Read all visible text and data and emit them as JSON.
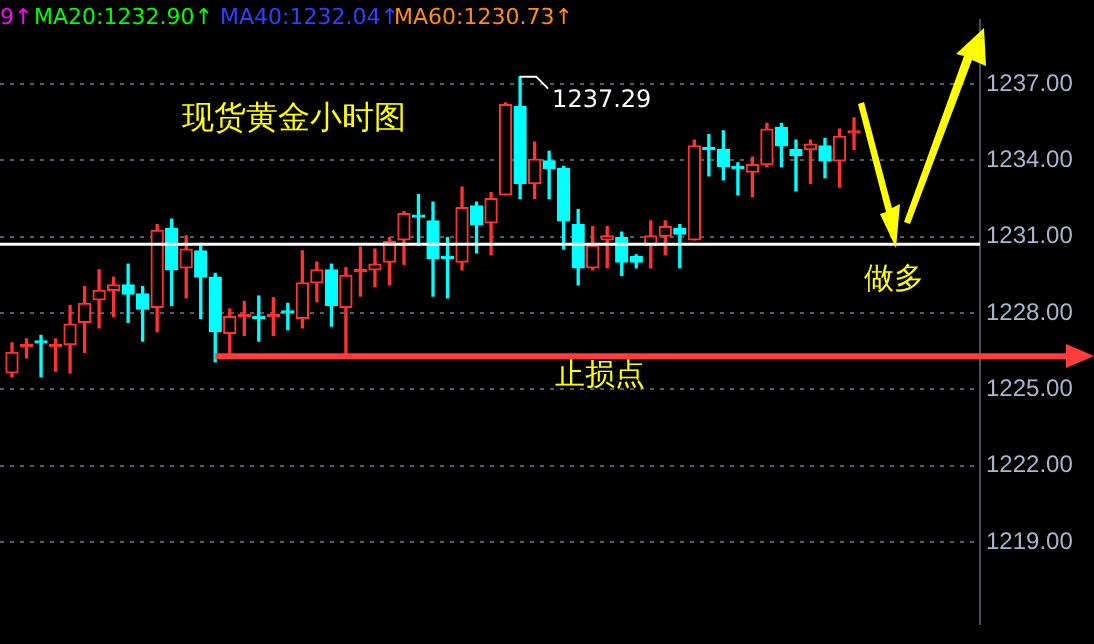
{
  "chart_data": {
    "type": "candlestick",
    "title": "现货黄金小时图",
    "categories": [
      null,
      null,
      null,
      null,
      null,
      null,
      null,
      null,
      null,
      null,
      null,
      null,
      null,
      null,
      null,
      null,
      null,
      null,
      null,
      null,
      null,
      null,
      null,
      null,
      null,
      null,
      null,
      null,
      null,
      null,
      null,
      null,
      null,
      null,
      null,
      null,
      null,
      null,
      null,
      null,
      null,
      null,
      null,
      null,
      null,
      null,
      null,
      null,
      null,
      null,
      null,
      null,
      null,
      null,
      null,
      null,
      null,
      null,
      null
    ],
    "ohlc": [
      [
        1225.65,
        1226.83,
        1225.5,
        1226.46
      ],
      [
        1226.68,
        1226.98,
        1226.24,
        1226.68
      ],
      [
        1226.83,
        1227.12,
        1225.5,
        1226.83
      ],
      [
        1226.68,
        1226.98,
        1225.72,
        1226.68
      ],
      [
        1226.76,
        1228.3,
        1225.65,
        1227.57
      ],
      [
        1227.64,
        1229.04,
        1226.46,
        1228.38
      ],
      [
        1228.52,
        1229.7,
        1227.42,
        1228.89
      ],
      [
        1228.89,
        1229.41,
        1227.86,
        1229.11
      ],
      [
        1229.11,
        1229.92,
        1227.64,
        1228.75
      ],
      [
        1228.75,
        1229.04,
        1226.9,
        1228.16
      ],
      [
        1228.23,
        1231.47,
        1227.27,
        1231.25
      ],
      [
        1231.33,
        1231.69,
        1228.3,
        1229.7
      ],
      [
        1229.78,
        1231.03,
        1228.6,
        1230.51
      ],
      [
        1230.44,
        1230.74,
        1227.79,
        1229.41
      ],
      [
        1229.41,
        1229.56,
        1226.09,
        1227.27
      ],
      [
        1227.2,
        1228.16,
        1226.39,
        1227.86
      ],
      [
        1227.86,
        1228.45,
        1227.12,
        1227.86
      ],
      [
        1227.79,
        1228.67,
        1226.9,
        1227.79
      ],
      [
        1227.86,
        1228.6,
        1227.12,
        1227.86
      ],
      [
        1228.01,
        1228.38,
        1227.35,
        1228.01
      ],
      [
        1227.79,
        1230.44,
        1227.42,
        1229.19
      ],
      [
        1229.19,
        1230.0,
        1228.45,
        1229.7
      ],
      [
        1229.7,
        1229.92,
        1227.49,
        1228.3
      ],
      [
        1228.23,
        1229.78,
        1226.31,
        1229.48
      ],
      [
        1229.63,
        1230.59,
        1228.67,
        1229.63
      ],
      [
        1229.7,
        1230.51,
        1229.04,
        1229.92
      ],
      [
        1230.0,
        1230.96,
        1229.11,
        1230.81
      ],
      [
        1230.88,
        1231.99,
        1229.92,
        1231.91
      ],
      [
        1231.77,
        1232.65,
        1230.66,
        1231.77
      ],
      [
        1231.62,
        1232.36,
        1228.67,
        1230.15
      ],
      [
        1230.15,
        1230.96,
        1228.6,
        1230.15
      ],
      [
        1230.0,
        1232.95,
        1229.7,
        1232.14
      ],
      [
        1232.21,
        1232.36,
        1230.37,
        1231.47
      ],
      [
        1231.55,
        1232.73,
        1230.29,
        1232.5
      ],
      [
        1232.65,
        1236.26,
        1232.65,
        1236.19
      ],
      [
        1236.12,
        1237.29,
        1232.5,
        1233.09
      ],
      [
        1233.09,
        1234.72,
        1232.5,
        1234.05
      ],
      [
        1233.98,
        1234.35,
        1232.5,
        1233.68
      ],
      [
        1233.68,
        1233.76,
        1230.51,
        1231.62
      ],
      [
        1231.47,
        1232.06,
        1229.11,
        1229.78
      ],
      [
        1229.78,
        1231.4,
        1229.7,
        1230.66
      ],
      [
        1230.88,
        1231.4,
        1229.78,
        1231.03
      ],
      [
        1230.96,
        1231.18,
        1229.48,
        1230.0
      ],
      [
        1230.22,
        1230.29,
        1229.78,
        1230.0
      ],
      [
        1230.66,
        1231.62,
        1229.78,
        1231.03
      ],
      [
        1231.03,
        1231.62,
        1230.29,
        1231.4
      ],
      [
        1231.33,
        1231.47,
        1229.78,
        1231.1
      ],
      [
        1230.88,
        1234.79,
        1230.88,
        1234.57
      ],
      [
        1234.42,
        1235.01,
        1233.39,
        1234.42
      ],
      [
        1234.42,
        1235.16,
        1233.24,
        1233.76
      ],
      [
        1233.68,
        1233.9,
        1232.65,
        1233.68
      ],
      [
        1233.54,
        1234.13,
        1232.58,
        1233.83
      ],
      [
        1233.83,
        1235.45,
        1233.76,
        1235.23
      ],
      [
        1235.3,
        1235.45,
        1233.76,
        1234.57
      ],
      [
        1234.42,
        1234.79,
        1232.8,
        1234.2
      ],
      [
        1234.42,
        1234.79,
        1233.09,
        1234.64
      ],
      [
        1234.57,
        1234.86,
        1233.32,
        1233.98
      ],
      [
        1233.98,
        1235.23,
        1232.95,
        1234.94
      ],
      [
        1235.08,
        1235.67,
        1234.42,
        1235.08
      ]
    ],
    "colors": [
      "#ff3232",
      "#ff3232",
      "#00ffff",
      "#ff3232",
      "#ff3232",
      "#ff3232",
      "#ff3232",
      "#ff3232",
      "#00ffff",
      "#00ffff",
      "#ff3232",
      "#00ffff",
      "#ff3232",
      "#00ffff",
      "#00ffff",
      "#ff3232",
      "#ff3232",
      "#00ffff",
      "#ff3232",
      "#00ffff",
      "#ff3232",
      "#ff3232",
      "#00ffff",
      "#ff3232",
      "#ff3232",
      "#ff3232",
      "#ff3232",
      "#ff3232",
      "#00ffff",
      "#00ffff",
      "#00ffff",
      "#ff3232",
      "#00ffff",
      "#ff3232",
      "#ff3232",
      "#00ffff",
      "#ff3232",
      "#00ffff",
      "#00ffff",
      "#00ffff",
      "#ff3232",
      "#ff3232",
      "#00ffff",
      "#00ffff",
      "#ff3232",
      "#ff3232",
      "#00ffff",
      "#ff3232",
      "#00ffff",
      "#00ffff",
      "#00ffff",
      "#ff3232",
      "#ff3232",
      "#00ffff",
      "#00ffff",
      "#ff3232",
      "#00ffff",
      "#ff3232",
      "#ff3232"
    ],
    "ylim": [
      1215.8,
      1239.5
    ],
    "yticks": [
      {
        "value": 1219,
        "label": "1219.00"
      },
      {
        "value": 1222,
        "label": "1222.00"
      },
      {
        "value": 1225,
        "label": "1225.00"
      },
      {
        "value": 1228,
        "label": "1228.00"
      },
      {
        "value": 1231,
        "label": "1231.00"
      },
      {
        "value": 1234,
        "label": "1234.00"
      },
      {
        "value": 1237,
        "label": "1237.00"
      }
    ],
    "grid": "y",
    "legend": false,
    "ref_lines": [
      {
        "axis": "y",
        "value": 1230.7,
        "color": "#ffffff"
      },
      {
        "axis": "y",
        "value": 1226.3,
        "label": "止损点",
        "color": "#ff3c3c"
      }
    ],
    "annotations": [
      "9↑",
      "MA20:1232.90↑",
      "MA40:1232.04↑",
      "MA60:1230.73↑",
      "做多",
      "1237.29"
    ]
  }
}
